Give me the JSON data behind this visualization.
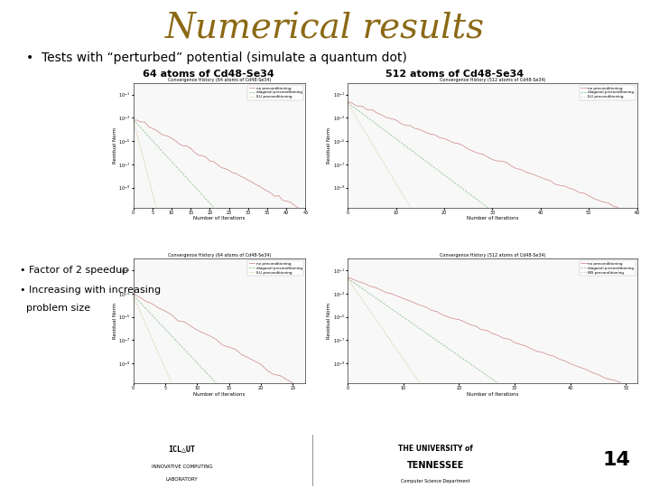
{
  "title": "Numerical results",
  "title_color": "#8B6914",
  "title_fontsize": 28,
  "bullet1": "Tests with “perturbed” potential (simulate a quantum dot)",
  "label_64": "64 atoms of Cd48-Se34",
  "label_512": "512 atoms of Cd48-Se34",
  "bullet2": "• Factor of 2 speedup",
  "bullet3": "• Increasing with increasing",
  "bullet3b": "  problem size",
  "slide_bg": "#ffffff",
  "footer_bg": "#9aa5b8",
  "page_number": "14",
  "no_precon_color": "#c87878",
  "diag_precon_color": "#78b878",
  "ilu_precon_color": "#b8a050",
  "legend_no": "no preconditioning",
  "legend_diag": "diagonal preconditioning",
  "legend_ilu": "ILU preconditioning",
  "subplot_bg": "#f8f8f8"
}
